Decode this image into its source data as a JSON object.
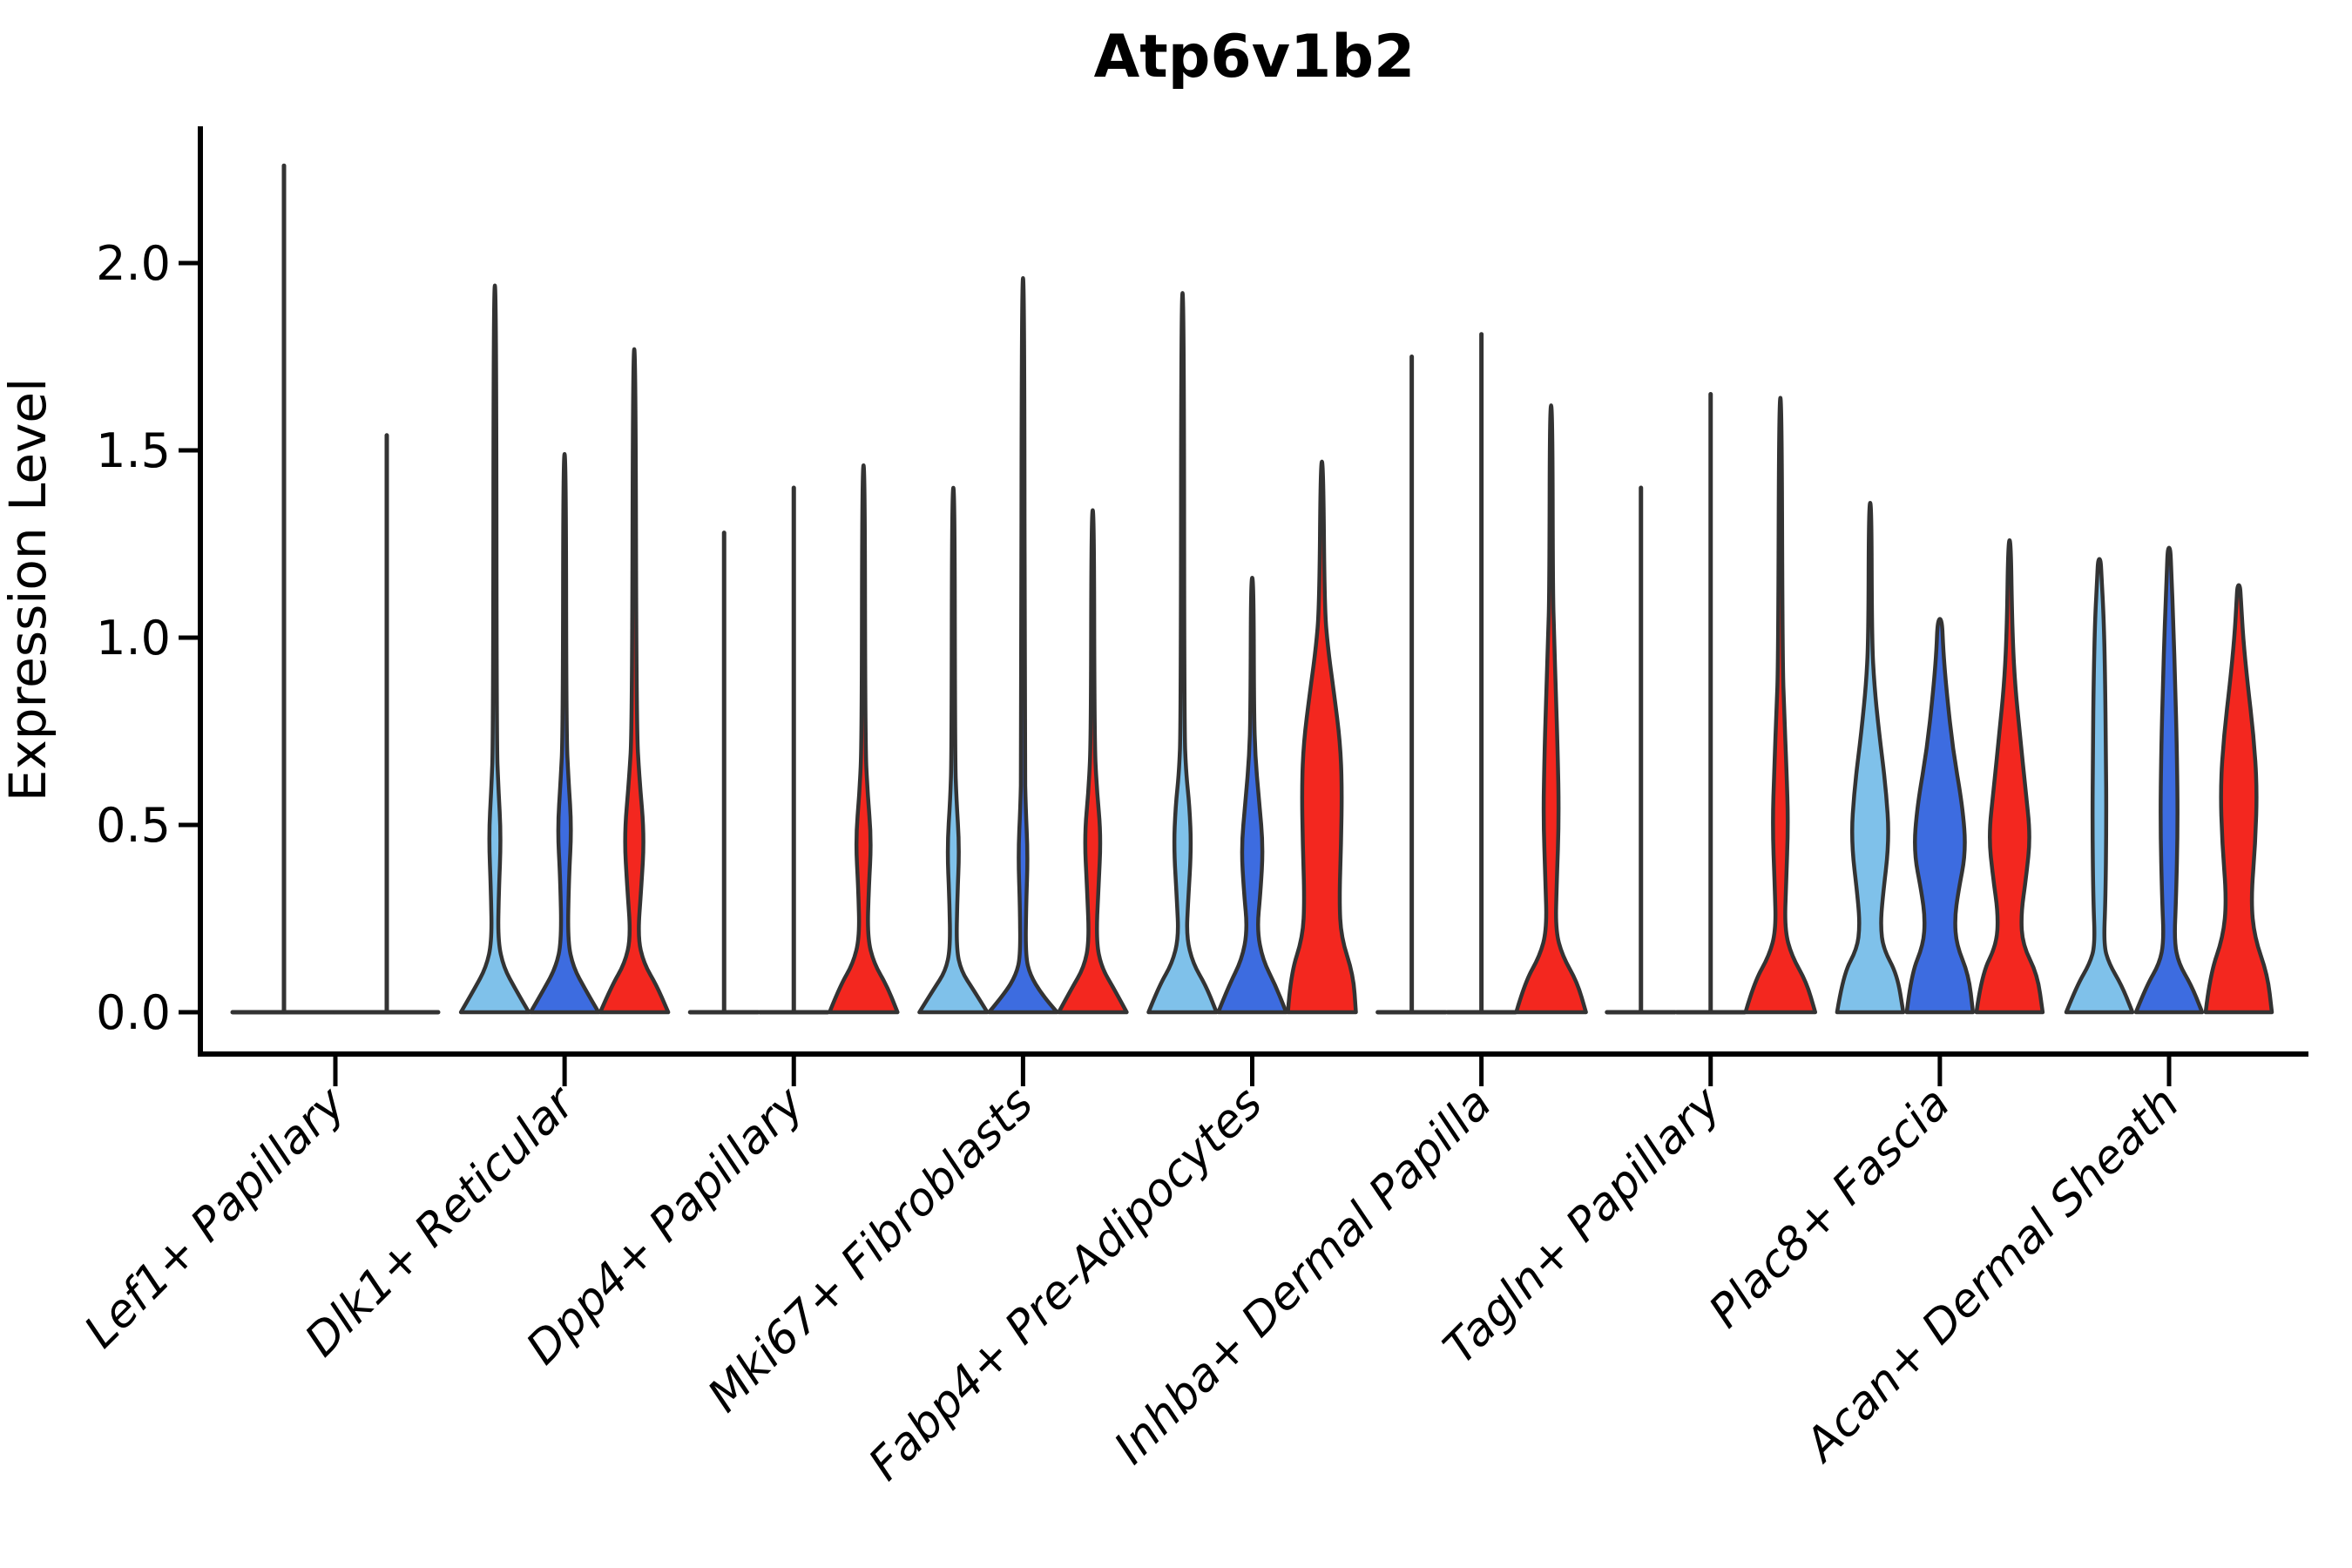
{
  "chart_data": {
    "type": "violin",
    "title": "Atp6v1b2",
    "ylabel": "Expression Level",
    "xlabel": "",
    "yticks": [
      0.0,
      0.5,
      1.0,
      1.5,
      2.0
    ],
    "ylim": [
      -0.11,
      2.37
    ],
    "grid": false,
    "legend_position": "none",
    "colors": {
      "light_blue": "#7FC1EA",
      "dark_blue": "#3D6CE0",
      "red": "#F3271F",
      "edge": "#333333",
      "axis": "#000000"
    },
    "categories": [
      "Lef1+ Papillary",
      "Dlk1+ Reticular",
      "Dpp4+ Papillary",
      "Mki67+ Fibroblasts",
      "Fabp4+ Pre-Adipocytes",
      "Inhba+ Dermal Papilla",
      "Tagln+ Papillary",
      "Plac8+ Fascia",
      "Acan+ Dermal Sheath"
    ],
    "groups": [
      {
        "category": "Lef1+ Papillary",
        "violins": [
          {
            "color": null,
            "flat": true,
            "max": 2.26,
            "dx": -59,
            "hw": 59
          },
          {
            "color": null,
            "flat": true,
            "max": 1.54,
            "dx": 59,
            "hw": 59
          }
        ]
      },
      {
        "category": "Dlk1+ Reticular",
        "violins": [
          {
            "color": "light_blue",
            "max": 1.94,
            "profile": [
              [
                0,
                39
              ],
              [
                0.06,
                24
              ],
              [
                0.12,
                10
              ],
              [
                0.19,
                3.5
              ],
              [
                0.32,
                4.5
              ],
              [
                0.47,
                7
              ],
              [
                0.6,
                4
              ],
              [
                0.72,
                2
              ],
              [
                1.94,
                1.5
              ]
            ]
          },
          {
            "color": "dark_blue",
            "max": 1.49,
            "profile": [
              [
                0,
                39
              ],
              [
                0.06,
                24
              ],
              [
                0.12,
                10
              ],
              [
                0.19,
                3.5
              ],
              [
                0.36,
                5
              ],
              [
                0.49,
                8
              ],
              [
                0.62,
                4.5
              ],
              [
                0.74,
                2
              ],
              [
                1.49,
                1.5
              ]
            ]
          },
          {
            "color": "red",
            "max": 1.77,
            "profile": [
              [
                0,
                39
              ],
              [
                0.07,
                26
              ],
              [
                0.13,
                11
              ],
              [
                0.2,
                4
              ],
              [
                0.33,
                8
              ],
              [
                0.47,
                11.5
              ],
              [
                0.62,
                6
              ],
              [
                0.76,
                2.5
              ],
              [
                1.77,
                1.5
              ]
            ]
          }
        ]
      },
      {
        "category": "Dpp4+ Papillary",
        "violins": [
          {
            "color": "light_blue",
            "flat": true,
            "max": 1.28,
            "hw": 39
          },
          {
            "color": "dark_blue",
            "flat": true,
            "max": 1.4,
            "hw": 39
          },
          {
            "color": "red",
            "max": 1.46,
            "profile": [
              [
                0,
                39
              ],
              [
                0.07,
                27
              ],
              [
                0.13,
                12
              ],
              [
                0.2,
                4.5
              ],
              [
                0.33,
                6
              ],
              [
                0.46,
                9
              ],
              [
                0.59,
                4.5
              ],
              [
                0.72,
                2
              ],
              [
                1.46,
                1.5
              ]
            ]
          }
        ]
      },
      {
        "category": "Mki67+ Fibroblasts",
        "violins": [
          {
            "color": "light_blue",
            "max": 1.4,
            "profile": [
              [
                0,
                39
              ],
              [
                0.06,
                23
              ],
              [
                0.11,
                9
              ],
              [
                0.17,
                3.5
              ],
              [
                0.3,
                4.5
              ],
              [
                0.44,
                7
              ],
              [
                0.57,
                3.5
              ],
              [
                0.68,
                2
              ],
              [
                1.4,
                1.5
              ]
            ]
          },
          {
            "color": "dark_blue",
            "max": 1.96,
            "profile": [
              [
                0,
                39
              ],
              [
                0.05,
                21
              ],
              [
                0.1,
                8
              ],
              [
                0.15,
                3
              ],
              [
                0.28,
                3.5
              ],
              [
                0.42,
                5.5
              ],
              [
                0.55,
                3
              ],
              [
                0.66,
                2
              ],
              [
                1.96,
                1.5
              ]
            ]
          },
          {
            "color": "red",
            "max": 1.34,
            "profile": [
              [
                0,
                39
              ],
              [
                0.06,
                25
              ],
              [
                0.12,
                10
              ],
              [
                0.19,
                4
              ],
              [
                0.33,
                6.5
              ],
              [
                0.47,
                9.5
              ],
              [
                0.6,
                4.5
              ],
              [
                0.73,
                2
              ],
              [
                1.34,
                1.5
              ]
            ]
          }
        ]
      },
      {
        "category": "Fabp4+ Pre-Adipocytes",
        "violins": [
          {
            "color": "light_blue",
            "max": 1.92,
            "profile": [
              [
                0,
                39
              ],
              [
                0.07,
                27
              ],
              [
                0.13,
                12
              ],
              [
                0.2,
                4.5
              ],
              [
                0.3,
                6.5
              ],
              [
                0.44,
                10
              ],
              [
                0.55,
                8
              ],
              [
                0.64,
                4
              ],
              [
                0.76,
                2
              ],
              [
                1.92,
                1.5
              ]
            ]
          },
          {
            "color": "dark_blue",
            "max": 1.16,
            "profile": [
              [
                0,
                39
              ],
              [
                0.07,
                27
              ],
              [
                0.14,
                12
              ],
              [
                0.22,
                5.5
              ],
              [
                0.32,
                9.5
              ],
              [
                0.44,
                12.5
              ],
              [
                0.56,
                8
              ],
              [
                0.68,
                3.5
              ],
              [
                0.8,
                2
              ],
              [
                1.16,
                1.5
              ]
            ]
          },
          {
            "color": "red",
            "max": 1.47,
            "profile": [
              [
                0,
                39
              ],
              [
                0.1,
                36
              ],
              [
                0.2,
                22
              ],
              [
                0.3,
                20
              ],
              [
                0.45,
                22
              ],
              [
                0.6,
                23
              ],
              [
                0.72,
                21
              ],
              [
                0.85,
                14
              ],
              [
                0.97,
                7
              ],
              [
                1.08,
                3
              ],
              [
                1.47,
                1.5
              ]
            ]
          }
        ]
      },
      {
        "category": "Inhba+ Dermal Papilla",
        "violins": [
          {
            "color": "light_blue",
            "flat": true,
            "max": 1.75,
            "hw": 39
          },
          {
            "color": "dark_blue",
            "flat": true,
            "max": 1.81,
            "hw": 39
          },
          {
            "color": "red",
            "max": 1.62,
            "profile": [
              [
                0,
                40
              ],
              [
                0.08,
                30
              ],
              [
                0.15,
                13
              ],
              [
                0.22,
                5
              ],
              [
                0.35,
                6.5
              ],
              [
                0.52,
                9
              ],
              [
                0.7,
                7.5
              ],
              [
                0.85,
                5.5
              ],
              [
                1.0,
                3.5
              ],
              [
                1.12,
                2
              ],
              [
                1.62,
                1.5
              ]
            ]
          }
        ]
      },
      {
        "category": "Tagln+ Papillary",
        "violins": [
          {
            "color": "light_blue",
            "flat": true,
            "max": 1.4,
            "hw": 39
          },
          {
            "color": "dark_blue",
            "flat": true,
            "max": 1.65,
            "hw": 39
          },
          {
            "color": "red",
            "max": 1.64,
            "profile": [
              [
                0,
                40
              ],
              [
                0.08,
                30
              ],
              [
                0.15,
                13
              ],
              [
                0.22,
                5
              ],
              [
                0.34,
                6.5
              ],
              [
                0.5,
                9
              ],
              [
                0.65,
                7
              ],
              [
                0.8,
                4.5
              ],
              [
                0.93,
                2.5
              ],
              [
                1.64,
                1.5
              ]
            ]
          }
        ]
      },
      {
        "category": "Plac8+ Fascia",
        "violins": [
          {
            "color": "light_blue",
            "max": 1.36,
            "profile": [
              [
                0,
                38
              ],
              [
                0.1,
                31
              ],
              [
                0.17,
                15
              ],
              [
                0.23,
                12
              ],
              [
                0.3,
                14
              ],
              [
                0.46,
                22
              ],
              [
                0.6,
                18
              ],
              [
                0.75,
                10
              ],
              [
                0.88,
                4.5
              ],
              [
                1.0,
                2
              ],
              [
                1.36,
                1.5
              ]
            ]
          },
          {
            "color": "dark_blue",
            "max": 1.05,
            "profile": [
              [
                0,
                38
              ],
              [
                0.1,
                33
              ],
              [
                0.18,
                19
              ],
              [
                0.25,
                17
              ],
              [
                0.32,
                21
              ],
              [
                0.43,
                30
              ],
              [
                0.55,
                26
              ],
              [
                0.7,
                15
              ],
              [
                0.85,
                8
              ],
              [
                0.96,
                4
              ],
              [
                1.05,
                2.5
              ]
            ]
          },
          {
            "color": "red",
            "max": 1.26,
            "profile": [
              [
                0,
                38
              ],
              [
                0.1,
                32
              ],
              [
                0.18,
                15
              ],
              [
                0.26,
                13
              ],
              [
                0.36,
                19
              ],
              [
                0.47,
                24
              ],
              [
                0.6,
                18
              ],
              [
                0.74,
                12
              ],
              [
                0.88,
                6
              ],
              [
                1.03,
                3
              ],
              [
                1.26,
                1.5
              ]
            ]
          }
        ]
      },
      {
        "category": "Acan+ Dermal Sheath",
        "violins": [
          {
            "color": "light_blue",
            "max": 1.21,
            "profile": [
              [
                0,
                38
              ],
              [
                0.07,
                26
              ],
              [
                0.13,
                11
              ],
              [
                0.18,
                5
              ],
              [
                0.3,
                7
              ],
              [
                0.5,
                8
              ],
              [
                0.7,
                7.5
              ],
              [
                0.9,
                6.5
              ],
              [
                1.05,
                5
              ],
              [
                1.16,
                2.5
              ],
              [
                1.21,
                1.5
              ]
            ]
          },
          {
            "color": "dark_blue",
            "max": 1.24,
            "profile": [
              [
                0,
                38
              ],
              [
                0.07,
                26
              ],
              [
                0.13,
                11
              ],
              [
                0.19,
                6
              ],
              [
                0.3,
                8
              ],
              [
                0.5,
                10
              ],
              [
                0.7,
                9
              ],
              [
                0.88,
                7
              ],
              [
                1.03,
                5
              ],
              [
                1.18,
                2.5
              ],
              [
                1.24,
                1.5
              ]
            ]
          },
          {
            "color": "red",
            "max": 1.14,
            "profile": [
              [
                0,
                38
              ],
              [
                0.1,
                33
              ],
              [
                0.2,
                18
              ],
              [
                0.3,
                14
              ],
              [
                0.45,
                19
              ],
              [
                0.6,
                21
              ],
              [
                0.74,
                17
              ],
              [
                0.88,
                10
              ],
              [
                1.0,
                5
              ],
              [
                1.1,
                2.5
              ],
              [
                1.14,
                1.5
              ]
            ]
          }
        ]
      }
    ]
  }
}
